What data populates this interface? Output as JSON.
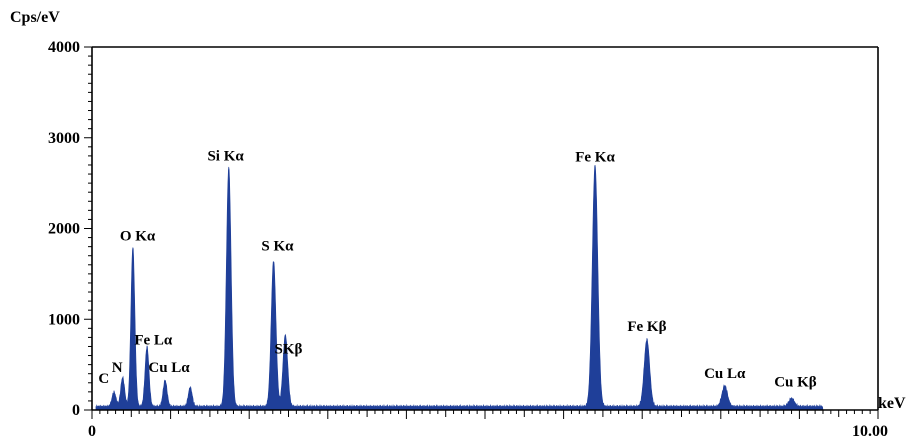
{
  "chart_data": {
    "type": "area",
    "ylabel": "Cps/eV",
    "xlabel": "keV",
    "xlim": [
      0,
      10.0
    ],
    "ylim": [
      0,
      4000
    ],
    "x_tick_labels": [
      "0",
      "10.00"
    ],
    "y_ticks": [
      0,
      1000,
      2000,
      3000,
      4000
    ],
    "y_tick_labels": [
      "0",
      "1000",
      "2000",
      "3000",
      "4000"
    ],
    "grid": false,
    "legend": "none",
    "baseline": 40,
    "peaks": [
      {
        "label": "C",
        "x": 0.28,
        "y": 200,
        "label_x": 0.15,
        "label_y": 300
      },
      {
        "label": "N",
        "x": 0.39,
        "y": 360,
        "label_x": 0.32,
        "label_y": 420
      },
      {
        "label": "O Kα",
        "x": 0.52,
        "y": 1800,
        "label_x": 0.58,
        "label_y": 1870
      },
      {
        "label": "Fe Lα",
        "x": 0.7,
        "y": 700,
        "label_x": 0.78,
        "label_y": 720
      },
      {
        "label": "Cu Lα",
        "x": 0.93,
        "y": 330,
        "label_x": 0.98,
        "label_y": 420
      },
      {
        "label": "",
        "x": 1.25,
        "y": 250
      },
      {
        "label": "Si Kα",
        "x": 1.74,
        "y": 2680,
        "label_x": 1.7,
        "label_y": 2750
      },
      {
        "label": "S Kα",
        "x": 2.31,
        "y": 1650,
        "label_x": 2.36,
        "label_y": 1760
      },
      {
        "label": "SKβ",
        "x": 2.46,
        "y": 830,
        "label_x": 2.5,
        "label_y": 620
      },
      {
        "label": "Fe Kα",
        "x": 6.4,
        "y": 2700,
        "label_x": 6.4,
        "label_y": 2740
      },
      {
        "label": "Fe Kβ",
        "x": 7.06,
        "y": 780,
        "label_x": 7.06,
        "label_y": 870
      },
      {
        "label": "Cu Lα",
        "x": 8.05,
        "y": 270,
        "label_x": 8.05,
        "label_y": 350
      },
      {
        "label": "Cu Kβ",
        "x": 8.9,
        "y": 130,
        "label_x": 8.95,
        "label_y": 260
      }
    ]
  },
  "colors": {
    "fill": "#1f3f99",
    "axis": "#000000"
  }
}
